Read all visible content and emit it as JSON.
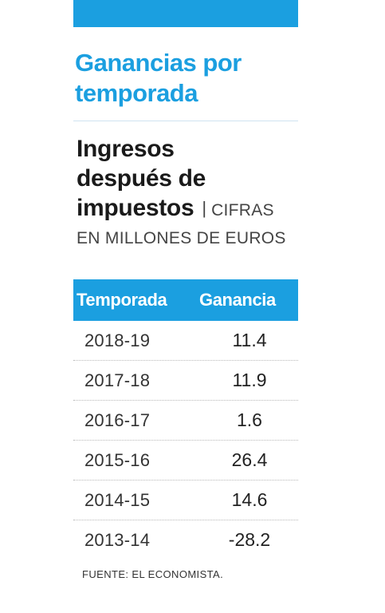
{
  "header": {
    "title_line1": "Ganancias por",
    "title_line2": "temporada",
    "subtitle_line1": "Ingresos",
    "subtitle_line2": "después de",
    "subtitle_line3": "impuestos",
    "separator": "|",
    "unit_part1": "CIFRAS",
    "unit_part2": "EN MILLONES DE EUROS"
  },
  "colors": {
    "accent": "#1b9fe0"
  },
  "chart_data": {
    "type": "table",
    "columns": [
      "Temporada",
      "Ganancia"
    ],
    "rows": [
      [
        "2018-19",
        "11.4"
      ],
      [
        "2017-18",
        "11.9"
      ],
      [
        "2016-17",
        "1.6"
      ],
      [
        "2015-16",
        "26.4"
      ],
      [
        "2014-15",
        "14.6"
      ],
      [
        "2013-14",
        "-28.2"
      ]
    ]
  },
  "footer": {
    "source": "FUENTE: EL ECONOMISTA."
  }
}
